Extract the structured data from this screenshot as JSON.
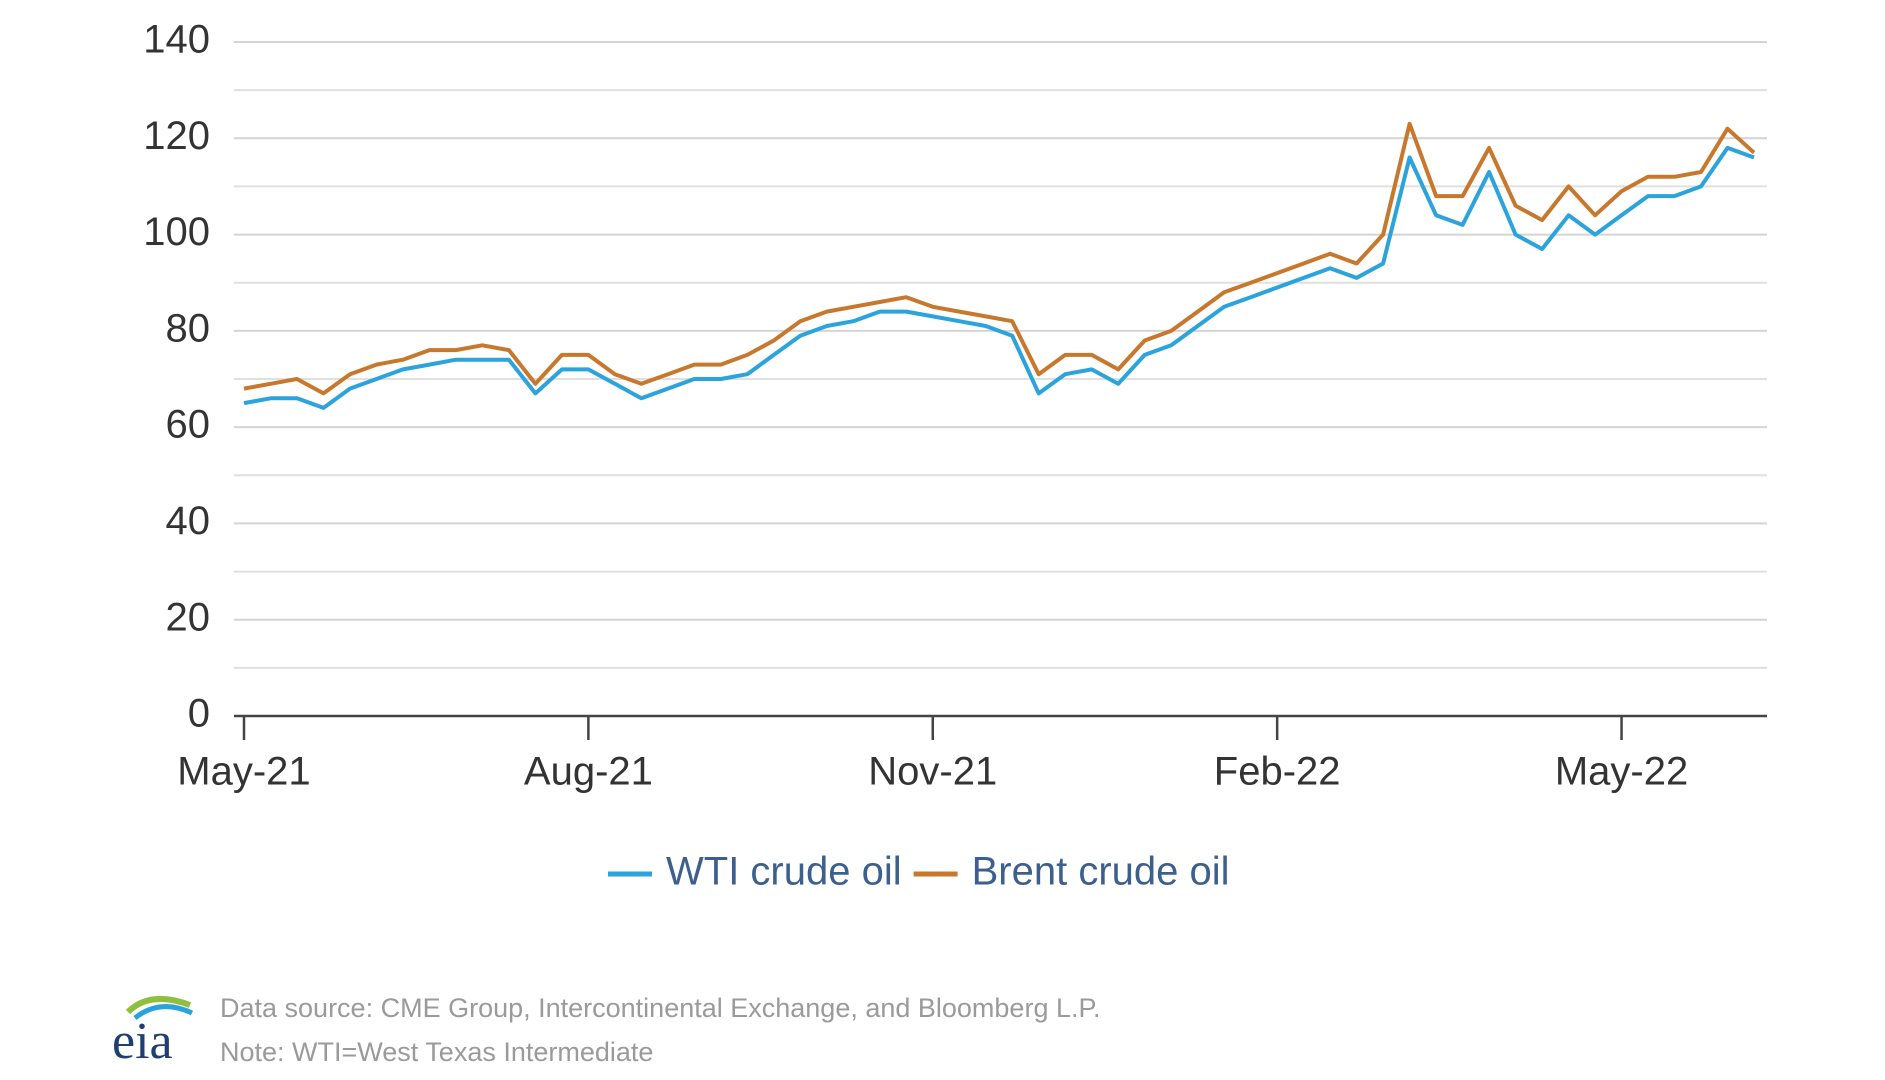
{
  "chart_data": {
    "type": "line",
    "categories": [
      "May-21",
      null,
      null,
      null,
      null,
      null,
      null,
      null,
      null,
      null,
      null,
      null,
      null,
      "Aug-21",
      null,
      null,
      null,
      null,
      null,
      null,
      null,
      null,
      null,
      null,
      null,
      null,
      "Nov-21",
      null,
      null,
      null,
      null,
      null,
      null,
      null,
      null,
      null,
      null,
      null,
      null,
      "Feb-22",
      null,
      null,
      null,
      null,
      null,
      null,
      null,
      null,
      null,
      null,
      null,
      null,
      "May-22",
      null,
      null,
      null,
      null,
      null
    ],
    "series": [
      {
        "name": "WTI crude oil",
        "color": "#2ba3dc",
        "values": [
          65,
          66,
          66,
          64,
          68,
          70,
          72,
          73,
          74,
          74,
          74,
          67,
          72,
          72,
          69,
          66,
          68,
          70,
          70,
          71,
          75,
          79,
          81,
          82,
          84,
          84,
          83,
          82,
          81,
          79,
          67,
          71,
          72,
          69,
          75,
          77,
          81,
          85,
          87,
          89,
          91,
          93,
          91,
          94,
          116,
          104,
          102,
          113,
          100,
          97,
          104,
          100,
          104,
          108,
          108,
          110,
          118,
          116
        ]
      },
      {
        "name": "Brent crude oil",
        "color": "#c8782d",
        "values": [
          68,
          69,
          70,
          67,
          71,
          73,
          74,
          76,
          76,
          77,
          76,
          69,
          75,
          75,
          71,
          69,
          71,
          73,
          73,
          75,
          78,
          82,
          84,
          85,
          86,
          87,
          85,
          84,
          83,
          82,
          71,
          75,
          75,
          72,
          78,
          80,
          84,
          88,
          90,
          92,
          94,
          96,
          94,
          100,
          123,
          108,
          108,
          118,
          106,
          103,
          110,
          104,
          109,
          112,
          112,
          113,
          122,
          117
        ]
      }
    ],
    "ylim": [
      0,
      140
    ],
    "yticks": [
      0,
      20,
      40,
      60,
      80,
      100,
      120,
      140
    ],
    "grid": true,
    "minor_grid": true,
    "legend": "bottom",
    "source": "Data source: CME Group, Intercontinental Exchange, and Bloomberg L.P.",
    "note": "Note: WTI=West Texas Intermediate",
    "logo": "eia"
  }
}
